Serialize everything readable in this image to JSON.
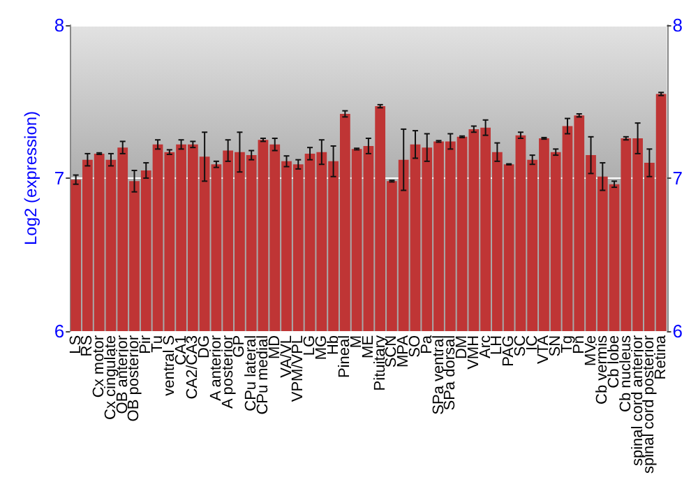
{
  "chart_data": {
    "type": "bar",
    "ylabel": "Log2 (expression)",
    "categories": [
      "LS",
      "RS",
      "Cx motor",
      "Cx cingulate",
      "OB anterior",
      "OB posterior",
      "Pir",
      "Tu",
      "ventral S",
      "CA1",
      "CA2/CA3",
      "DG",
      "A anterior",
      "A posterior",
      "GP",
      "CPu lateral",
      "CPu medial",
      "MD",
      "VA/VL",
      "VPM/VPL",
      "LG",
      "MG",
      "Hb",
      "Pineal",
      "M",
      "ME",
      "Pituitary",
      "SCN",
      "MPA",
      "SO",
      "Pa",
      "SPa ventral",
      "SPa dorsal",
      "DM",
      "VMH",
      "Arc",
      "LH",
      "PAG",
      "SC",
      "IC",
      "VTA",
      "SN",
      "Tg",
      "Pn",
      "MVe",
      "Cb vermis",
      "Cb lobe",
      "Cb nucleus",
      "spinal cord anterior",
      "spinal cord posterior",
      "Retina"
    ],
    "series": [
      {
        "color": "#bf3535",
        "values": [
          6.99,
          7.12,
          7.16,
          7.12,
          7.2,
          6.98,
          7.05,
          7.22,
          7.17,
          7.22,
          7.22,
          7.14,
          7.09,
          7.18,
          7.17,
          7.15,
          7.25,
          7.22,
          7.11,
          7.09,
          7.16,
          7.17,
          7.11,
          7.42,
          7.19,
          7.21,
          7.47,
          6.98,
          7.12,
          7.22,
          7.2,
          7.24,
          7.24,
          7.27,
          7.32,
          7.33,
          7.17,
          7.09,
          7.28,
          7.12,
          7.26,
          7.17,
          7.34,
          7.41,
          7.15,
          7.01,
          6.96,
          7.26,
          7.26,
          7.1,
          7.55
        ],
        "errors": [
          0.03,
          0.04,
          0.005,
          0.04,
          0.04,
          0.07,
          0.05,
          0.03,
          0.015,
          0.03,
          0.02,
          0.16,
          0.02,
          0.07,
          0.13,
          0.03,
          0.01,
          0.04,
          0.035,
          0.03,
          0.04,
          0.08,
          0.1,
          0.02,
          0.005,
          0.05,
          0.01,
          0.005,
          0.2,
          0.09,
          0.09,
          0.005,
          0.05,
          0.005,
          0.02,
          0.05,
          0.06,
          0.003,
          0.02,
          0.03,
          0.005,
          0.02,
          0.05,
          0.01,
          0.12,
          0.09,
          0.02,
          0.01,
          0.1,
          0.09,
          0.01
        ]
      }
    ],
    "ylim": [
      6,
      8
    ],
    "yticks": [
      6,
      7,
      8
    ],
    "y2lim": [
      6,
      8
    ],
    "y2ticks": [
      6,
      7,
      8
    ],
    "grid": "y"
  }
}
